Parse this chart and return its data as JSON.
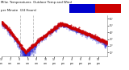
{
  "title": "Milw. Temperatures  Outdoor Temp and Wind",
  "subtitle": "per Minute  (24 Hours)",
  "bg_color": "#ffffff",
  "temp_color": "#cc0000",
  "wind_color": "#0000cc",
  "ylim": [
    5,
    65
  ],
  "y_ticks": [
    10,
    20,
    30,
    40,
    50,
    60
  ],
  "y_labels": [
    "1°",
    "2°",
    "3°",
    "4°",
    "5°",
    "6°"
  ],
  "vline_color": "#aaaaaa",
  "vline_x": [
    4.3,
    7.2
  ],
  "seed": 12,
  "n_points": 1440
}
